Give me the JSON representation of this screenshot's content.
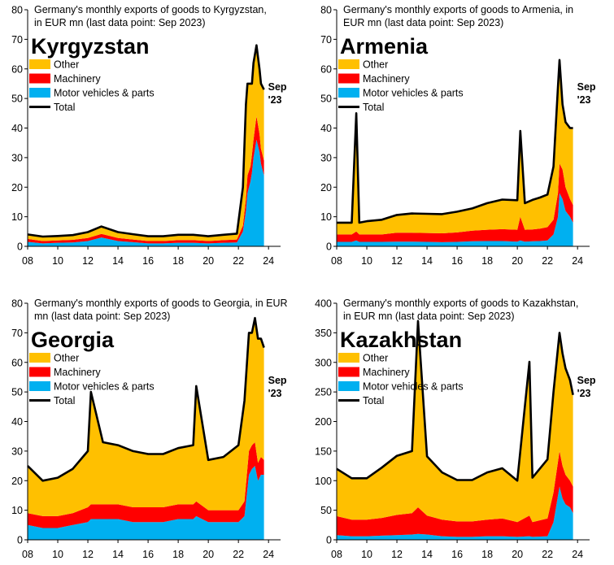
{
  "chart_data": [
    {
      "type": "area",
      "title": "Germany's monthly exports of goods to Kyrgyzstan, in EUR mn (last data point: Sep 2023)",
      "name": "Kyrgyzstan",
      "end_label": [
        "Sep",
        "'23"
      ],
      "xlim": [
        2008,
        2024.8
      ],
      "ylim": [
        0,
        80
      ],
      "yticks": [
        0,
        10,
        20,
        30,
        40,
        50,
        60,
        70,
        80
      ],
      "xticks": [
        "08",
        "10",
        "12",
        "14",
        "16",
        "18",
        "20",
        "22",
        "24"
      ],
      "grid": false,
      "legend_position": "upper-left",
      "stacked": true,
      "series": [
        {
          "name": "Motor vehicles & parts",
          "color": "#00B0F0",
          "x": [
            2008.0,
            2009.0,
            2010.0,
            2011.0,
            2012.0,
            2012.9,
            2014.0,
            2015.0,
            2016.0,
            2017.0,
            2018.0,
            2019.0,
            2020.0,
            2021.0,
            2021.9,
            2022.3,
            2022.5,
            2022.6,
            2022.8,
            2022.9,
            2023.0,
            2023.2,
            2023.4,
            2023.5,
            2023.7
          ],
          "values": [
            1.5,
            1.0,
            1.2,
            1.3,
            1.8,
            3.0,
            1.8,
            1.4,
            1.0,
            1.0,
            1.2,
            1.2,
            1.0,
            1.2,
            1.3,
            5,
            12,
            18,
            22,
            25,
            30,
            36,
            32,
            28,
            24
          ]
        },
        {
          "name": "Machinery",
          "color": "#FF0000",
          "x": [
            2008.0,
            2009.0,
            2010.0,
            2011.0,
            2012.0,
            2012.9,
            2014.0,
            2015.0,
            2016.0,
            2017.0,
            2018.0,
            2019.0,
            2020.0,
            2021.0,
            2021.9,
            2022.3,
            2022.5,
            2022.6,
            2022.8,
            2022.9,
            2023.0,
            2023.2,
            2023.4,
            2023.5,
            2023.7
          ],
          "values": [
            1.0,
            0.8,
            0.8,
            0.9,
            1.0,
            1.2,
            1.0,
            0.9,
            0.8,
            0.8,
            0.9,
            0.9,
            0.8,
            0.9,
            1.0,
            2,
            4,
            6,
            5,
            6,
            6,
            8,
            6,
            5,
            5
          ]
        },
        {
          "name": "Other",
          "color": "#FFC000",
          "x": [
            2008.0,
            2009.0,
            2010.0,
            2011.0,
            2012.0,
            2012.9,
            2014.0,
            2015.0,
            2016.0,
            2017.0,
            2018.0,
            2019.0,
            2020.0,
            2021.0,
            2021.9,
            2022.3,
            2022.5,
            2022.6,
            2022.8,
            2022.9,
            2023.0,
            2023.2,
            2023.4,
            2023.5,
            2023.7
          ],
          "values": [
            1.5,
            1.5,
            1.5,
            1.6,
            2.0,
            2.5,
            2.0,
            1.8,
            1.6,
            1.6,
            1.8,
            1.8,
            1.6,
            1.8,
            2.0,
            13,
            32,
            31,
            28,
            24,
            26,
            24,
            22,
            22,
            24
          ]
        },
        {
          "name": "Total",
          "color": "#000000",
          "x": [
            2008.0,
            2009.0,
            2010.0,
            2011.0,
            2012.0,
            2012.9,
            2014.0,
            2015.0,
            2016.0,
            2017.0,
            2018.0,
            2019.0,
            2020.0,
            2021.0,
            2021.9,
            2022.3,
            2022.5,
            2022.6,
            2022.8,
            2022.9,
            2023.0,
            2023.2,
            2023.4,
            2023.5,
            2023.7
          ],
          "values": [
            4.0,
            3.3,
            3.5,
            3.8,
            4.8,
            6.7,
            4.8,
            4.1,
            3.4,
            3.4,
            3.9,
            3.9,
            3.4,
            3.9,
            4.3,
            20,
            48,
            55,
            55,
            55,
            62,
            68,
            60,
            55,
            53
          ]
        }
      ]
    },
    {
      "type": "area",
      "title": "Germany's monthly exports of goods to Armenia, in EUR mn (last data point: Sep 2023)",
      "name": "Armenia",
      "end_label": [
        "Sep",
        "'23"
      ],
      "xlim": [
        2008,
        2024.8
      ],
      "ylim": [
        0,
        80
      ],
      "yticks": [
        0,
        10,
        20,
        30,
        40,
        50,
        60,
        70,
        80
      ],
      "xticks": [
        "08",
        "10",
        "12",
        "14",
        "16",
        "18",
        "20",
        "22",
        "24"
      ],
      "grid": false,
      "legend_position": "upper-left",
      "stacked": true,
      "series": [
        {
          "name": "Motor vehicles & parts",
          "color": "#00B0F0",
          "x": [
            2008.0,
            2009.0,
            2009.3,
            2009.5,
            2010.0,
            2011.0,
            2012.0,
            2013.0,
            2014.0,
            2015.0,
            2016.0,
            2017.0,
            2018.0,
            2019.0,
            2020.0,
            2020.2,
            2020.5,
            2021.0,
            2021.5,
            2022.0,
            2022.4,
            2022.7,
            2022.8,
            2023.0,
            2023.2,
            2023.5,
            2023.7
          ],
          "values": [
            1.5,
            1.5,
            2,
            1.5,
            1.5,
            1.5,
            1.6,
            1.6,
            1.5,
            1.4,
            1.5,
            1.7,
            1.8,
            1.8,
            1.6,
            2,
            1.6,
            1.7,
            1.8,
            2,
            4,
            10,
            18,
            16,
            12,
            10,
            8
          ]
        },
        {
          "name": "Machinery",
          "color": "#FF0000",
          "x": [
            2008.0,
            2009.0,
            2009.3,
            2009.5,
            2010.0,
            2011.0,
            2012.0,
            2013.0,
            2014.0,
            2015.0,
            2016.0,
            2017.0,
            2018.0,
            2019.0,
            2020.0,
            2020.2,
            2020.5,
            2021.0,
            2021.5,
            2022.0,
            2022.4,
            2022.7,
            2022.8,
            2023.0,
            2023.2,
            2023.5,
            2023.7
          ],
          "values": [
            2.5,
            2.5,
            3,
            2.5,
            2.5,
            2.5,
            3.0,
            3.0,
            3.0,
            3.0,
            3.2,
            3.6,
            3.8,
            4.0,
            4.0,
            8,
            4.0,
            4.0,
            4.2,
            4.5,
            5,
            8,
            10,
            10,
            8,
            6,
            6
          ]
        },
        {
          "name": "Other",
          "color": "#FFC000",
          "x": [
            2008.0,
            2009.0,
            2009.3,
            2009.5,
            2010.0,
            2011.0,
            2012.0,
            2013.0,
            2014.0,
            2015.0,
            2016.0,
            2017.0,
            2018.0,
            2019.0,
            2020.0,
            2020.2,
            2020.5,
            2021.0,
            2021.5,
            2022.0,
            2022.4,
            2022.7,
            2022.8,
            2023.0,
            2023.2,
            2023.5,
            2023.7
          ],
          "values": [
            4.0,
            4.0,
            40,
            4.0,
            4.5,
            5.0,
            6.0,
            6.5,
            6.5,
            6.5,
            7.0,
            7.5,
            9.0,
            10,
            10,
            29,
            9,
            10,
            10.5,
            11,
            18,
            36,
            35,
            22,
            22,
            24,
            26
          ]
        },
        {
          "name": "Total",
          "color": "#000000",
          "x": [
            2008.0,
            2009.0,
            2009.3,
            2009.5,
            2010.0,
            2011.0,
            2012.0,
            2013.0,
            2014.0,
            2015.0,
            2016.0,
            2017.0,
            2018.0,
            2019.0,
            2020.0,
            2020.2,
            2020.5,
            2021.0,
            2021.5,
            2022.0,
            2022.4,
            2022.7,
            2022.8,
            2023.0,
            2023.2,
            2023.5,
            2023.7
          ],
          "values": [
            8,
            8,
            45,
            8,
            8.5,
            9,
            10.6,
            11.1,
            11,
            10.9,
            11.7,
            12.8,
            14.6,
            15.8,
            15.6,
            39,
            14.6,
            15.7,
            16.5,
            17.5,
            27,
            54,
            63,
            48,
            42,
            40,
            40
          ]
        }
      ]
    },
    {
      "type": "area",
      "title": "Germany's monthly exports of goods to Georgia, in EUR mn (last data point: Sep 2023)",
      "name": "Georgia",
      "end_label": [
        "Sep",
        "'23"
      ],
      "xlim": [
        2008,
        2024.8
      ],
      "ylim": [
        0,
        80
      ],
      "yticks": [
        0,
        10,
        20,
        30,
        40,
        50,
        60,
        70,
        80
      ],
      "xticks": [
        "08",
        "10",
        "12",
        "14",
        "16",
        "18",
        "20",
        "22",
        "24"
      ],
      "grid": false,
      "legend_position": "upper-left",
      "stacked": true,
      "series": [
        {
          "name": "Motor vehicles & parts",
          "color": "#00B0F0",
          "x": [
            2008.0,
            2009.0,
            2010.0,
            2011.0,
            2012.0,
            2012.2,
            2013.0,
            2014.0,
            2015.0,
            2016.0,
            2017.0,
            2018.0,
            2019.0,
            2019.2,
            2020.0,
            2021.0,
            2022.0,
            2022.4,
            2022.7,
            2022.9,
            2023.1,
            2023.3,
            2023.5,
            2023.7
          ],
          "values": [
            5,
            4,
            4,
            5,
            6,
            7,
            7,
            7,
            6,
            6,
            6,
            7,
            7,
            8,
            6,
            6,
            6,
            8,
            22,
            24,
            25,
            20,
            22,
            22
          ]
        },
        {
          "name": "Machinery",
          "color": "#FF0000",
          "x": [
            2008.0,
            2009.0,
            2010.0,
            2011.0,
            2012.0,
            2012.2,
            2013.0,
            2014.0,
            2015.0,
            2016.0,
            2017.0,
            2018.0,
            2019.0,
            2019.2,
            2020.0,
            2021.0,
            2022.0,
            2022.4,
            2022.7,
            2022.9,
            2023.1,
            2023.3,
            2023.5,
            2023.7
          ],
          "values": [
            4,
            4,
            4,
            4,
            5,
            5,
            5,
            5,
            5,
            5,
            5,
            5,
            5,
            5,
            4,
            4,
            4,
            5,
            8,
            8,
            8,
            6,
            6,
            5
          ]
        },
        {
          "name": "Other",
          "color": "#FFC000",
          "x": [
            2008.0,
            2009.0,
            2010.0,
            2011.0,
            2012.0,
            2012.2,
            2013.0,
            2014.0,
            2015.0,
            2016.0,
            2017.0,
            2018.0,
            2019.0,
            2019.2,
            2020.0,
            2021.0,
            2022.0,
            2022.4,
            2022.7,
            2022.9,
            2023.1,
            2023.3,
            2023.5,
            2023.7
          ],
          "values": [
            16,
            12,
            13,
            15,
            19,
            38,
            21,
            20,
            19,
            18,
            18,
            19,
            20,
            39,
            17,
            18,
            22,
            34,
            40,
            38,
            42,
            42,
            40,
            38
          ]
        },
        {
          "name": "Total",
          "color": "#000000",
          "x": [
            2008.0,
            2009.0,
            2010.0,
            2011.0,
            2012.0,
            2012.2,
            2013.0,
            2014.0,
            2015.0,
            2016.0,
            2017.0,
            2018.0,
            2019.0,
            2019.2,
            2020.0,
            2021.0,
            2022.0,
            2022.4,
            2022.7,
            2022.9,
            2023.1,
            2023.3,
            2023.5,
            2023.7
          ],
          "values": [
            25,
            20,
            21,
            24,
            30,
            50,
            33,
            32,
            30,
            29,
            29,
            31,
            32,
            52,
            27,
            28,
            32,
            47,
            70,
            70,
            75,
            68,
            68,
            65
          ]
        }
      ]
    },
    {
      "type": "area",
      "title": "Germany's monthly exports of goods to Kazakhstan, in EUR mn (last data point: Sep 2023)",
      "name": "Kazakhstan",
      "end_label": [
        "Sep",
        "'23"
      ],
      "xlim": [
        2008,
        2024.8
      ],
      "ylim": [
        0,
        400
      ],
      "yticks": [
        0,
        50,
        100,
        150,
        200,
        250,
        300,
        350,
        400
      ],
      "xticks": [
        "08",
        "10",
        "12",
        "14",
        "16",
        "18",
        "20",
        "22",
        "24"
      ],
      "grid": false,
      "legend_position": "upper-left",
      "stacked": true,
      "series": [
        {
          "name": "Motor vehicles & parts",
          "color": "#00B0F0",
          "x": [
            2008.0,
            2009.0,
            2010.0,
            2011.0,
            2012.0,
            2013.0,
            2013.4,
            2014.0,
            2015.0,
            2016.0,
            2017.0,
            2018.0,
            2019.0,
            2020.0,
            2020.8,
            2021.0,
            2022.0,
            2022.4,
            2022.8,
            2023.0,
            2023.2,
            2023.5,
            2023.7
          ],
          "values": [
            8,
            6,
            6,
            7,
            8,
            9,
            10,
            9,
            6,
            5,
            5,
            6,
            6,
            5,
            6,
            5,
            6,
            30,
            90,
            70,
            60,
            55,
            45
          ]
        },
        {
          "name": "Machinery",
          "color": "#FF0000",
          "x": [
            2008.0,
            2009.0,
            2010.0,
            2011.0,
            2012.0,
            2013.0,
            2013.4,
            2014.0,
            2015.0,
            2016.0,
            2017.0,
            2018.0,
            2019.0,
            2020.0,
            2020.8,
            2021.0,
            2022.0,
            2022.4,
            2022.8,
            2023.0,
            2023.2,
            2023.5,
            2023.7
          ],
          "values": [
            32,
            28,
            28,
            30,
            34,
            36,
            45,
            32,
            28,
            26,
            26,
            28,
            30,
            25,
            35,
            25,
            30,
            50,
            60,
            55,
            50,
            45,
            45
          ]
        },
        {
          "name": "Other",
          "color": "#FFC000",
          "x": [
            2008.0,
            2009.0,
            2010.0,
            2011.0,
            2012.0,
            2013.0,
            2013.4,
            2014.0,
            2015.0,
            2016.0,
            2017.0,
            2018.0,
            2019.0,
            2020.0,
            2020.8,
            2021.0,
            2022.0,
            2022.4,
            2022.8,
            2023.0,
            2023.2,
            2023.5,
            2023.7
          ],
          "values": [
            80,
            70,
            70,
            85,
            100,
            105,
            315,
            100,
            80,
            70,
            70,
            80,
            85,
            70,
            260,
            75,
            100,
            170,
            200,
            190,
            180,
            170,
            155
          ]
        },
        {
          "name": "Total",
          "color": "#000000",
          "x": [
            2008.0,
            2009.0,
            2010.0,
            2011.0,
            2012.0,
            2013.0,
            2013.4,
            2014.0,
            2015.0,
            2016.0,
            2017.0,
            2018.0,
            2019.0,
            2020.0,
            2020.8,
            2021.0,
            2022.0,
            2022.4,
            2022.8,
            2023.0,
            2023.2,
            2023.5,
            2023.7
          ],
          "values": [
            120,
            104,
            104,
            122,
            142,
            150,
            370,
            141,
            114,
            101,
            101,
            114,
            121,
            100,
            301,
            105,
            136,
            250,
            350,
            315,
            290,
            270,
            245
          ]
        }
      ]
    }
  ]
}
